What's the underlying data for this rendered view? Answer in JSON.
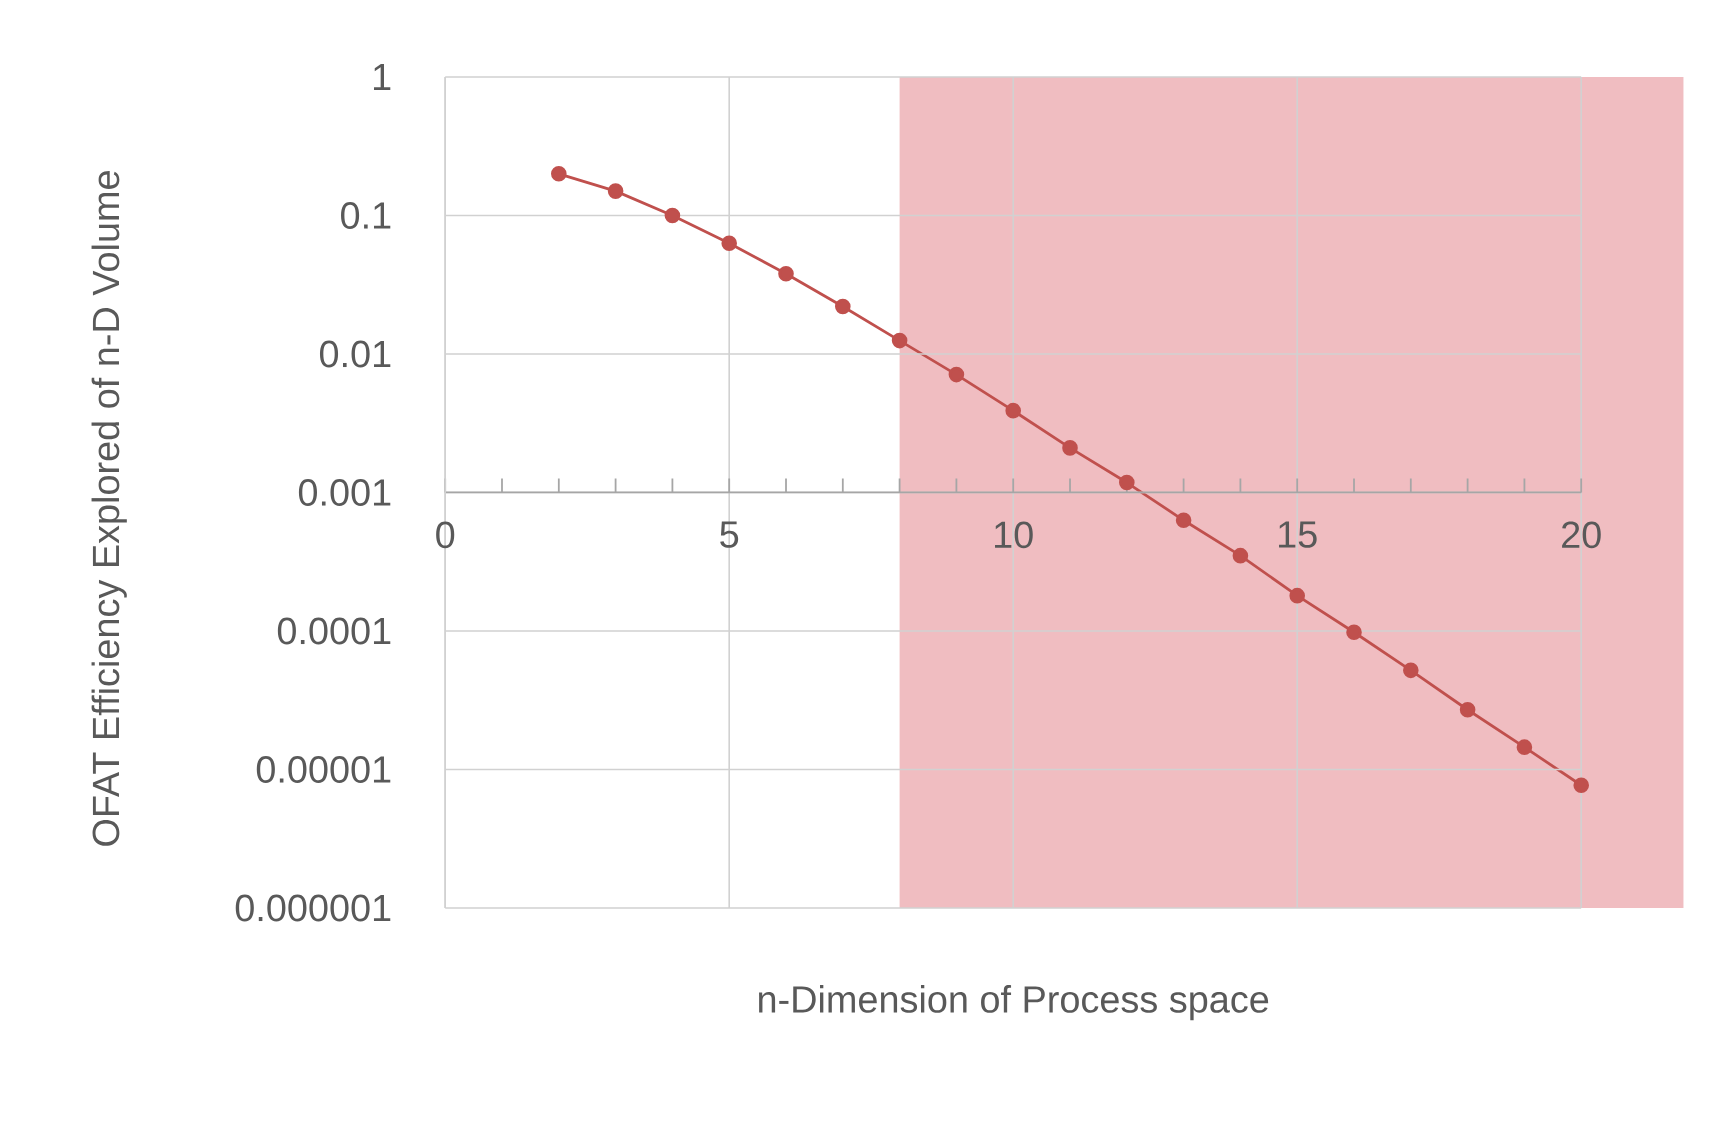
{
  "chart_data": {
    "type": "line",
    "xlabel": "n-Dimension of Process space",
    "ylabel": "OFAT Efficiency Explored of n-D Volume",
    "x": [
      2,
      3,
      4,
      5,
      6,
      7,
      8,
      9,
      10,
      11,
      12,
      13,
      14,
      15,
      16,
      17,
      18,
      19,
      20
    ],
    "series": [
      {
        "color": "#c0504d",
        "values": [
          0.2,
          0.15,
          0.1,
          0.063,
          0.038,
          0.022,
          0.0125,
          0.0071,
          0.0039,
          0.0021,
          0.00118,
          0.00063,
          0.00035,
          0.00018,
          9.8e-05,
          5.2e-05,
          2.7e-05,
          1.45e-05,
          7.7e-06
        ]
      }
    ],
    "log": "y",
    "xlim": [
      0,
      20
    ],
    "xticks": [
      0,
      5,
      10,
      15,
      20
    ],
    "ylim": [
      1e-06,
      1
    ],
    "yticks": [
      {
        "value": 1,
        "label": "1"
      },
      {
        "value": 0.1,
        "label": "0.1"
      },
      {
        "value": 0.01,
        "label": "0.01"
      },
      {
        "value": 0.001,
        "label": "0.001"
      },
      {
        "value": 0.0001,
        "label": "0.0001"
      },
      {
        "value": 1e-05,
        "label": "0.00001"
      },
      {
        "value": 1e-06,
        "label": "0.000001"
      }
    ],
    "bands": [
      {
        "axis": "x",
        "from": 8,
        "to": 21.8,
        "color": "#f0bdc1"
      }
    ],
    "grid": true,
    "marker": "circle",
    "line_style": "solid"
  }
}
